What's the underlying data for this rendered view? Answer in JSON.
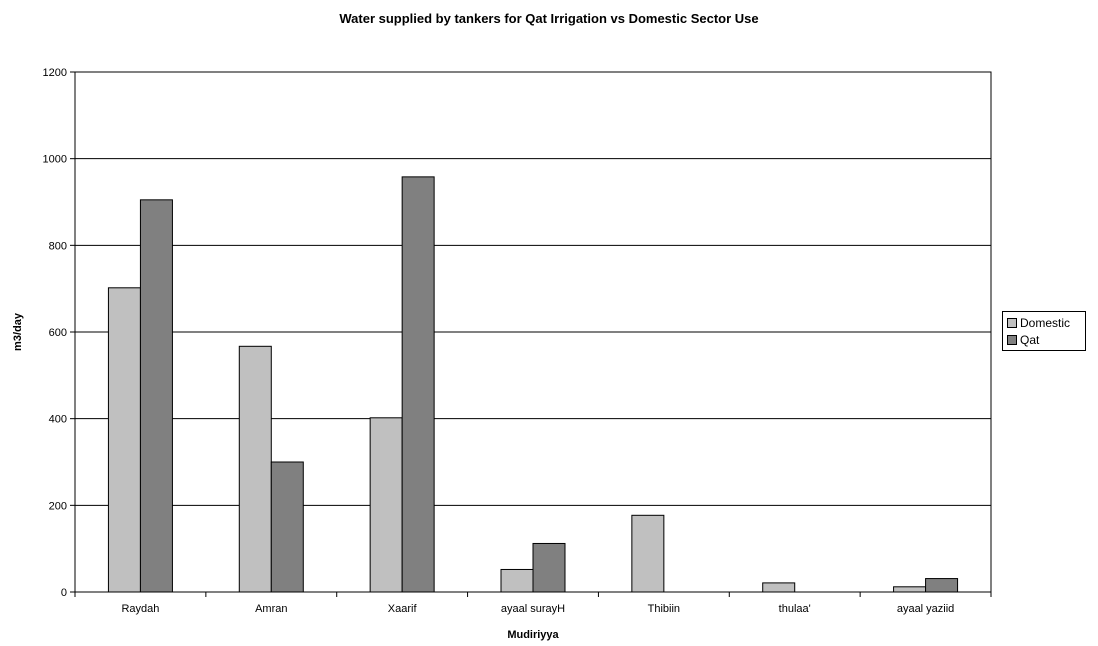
{
  "chart_data": {
    "type": "bar",
    "title": "Water supplied by tankers for Qat Irrigation vs Domestic Sector Use",
    "xlabel": "Mudiriyya",
    "ylabel": "m3/day",
    "ylim": [
      0,
      1200
    ],
    "yticks": [
      0,
      200,
      400,
      600,
      800,
      1000,
      1200
    ],
    "grid": true,
    "legend_position": "right",
    "categories": [
      "Raydah",
      "Amran",
      "Xaarif",
      "ayaal surayH",
      "Thibiin",
      "thulaa'",
      "ayaal yaziid"
    ],
    "series": [
      {
        "name": "Domestic",
        "color": "#c0c0c0",
        "values": [
          702,
          567,
          402,
          52,
          177,
          21,
          12
        ]
      },
      {
        "name": "Qat",
        "color": "#808080",
        "values": [
          905,
          300,
          958,
          112,
          0,
          0,
          31
        ]
      }
    ]
  }
}
